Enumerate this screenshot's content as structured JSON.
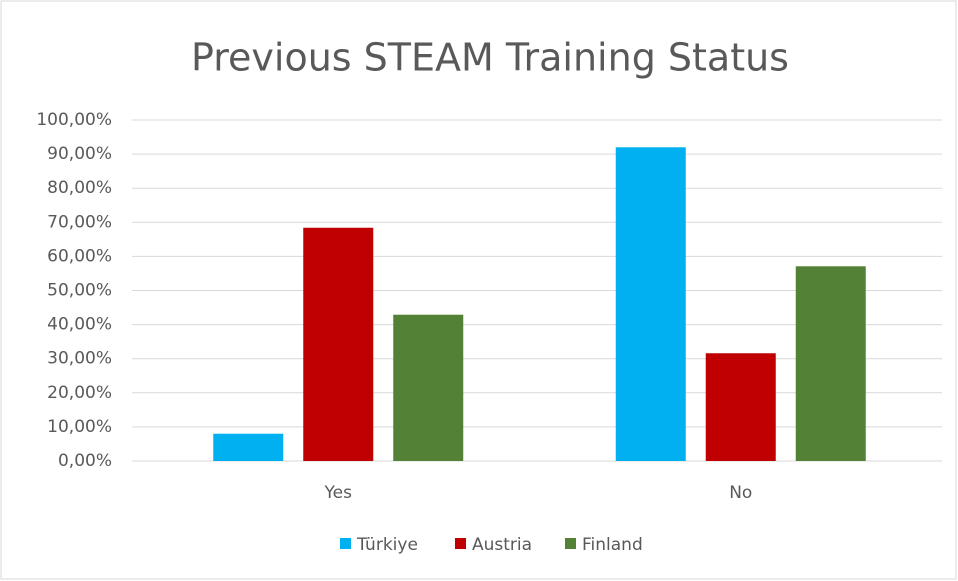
{
  "chart_data": {
    "type": "bar",
    "title": "Previous STEAM Training Status",
    "categories": [
      "Yes",
      "No"
    ],
    "series": [
      {
        "name": "Türkiye",
        "color": "#00b0f0",
        "values": [
          8,
          92
        ]
      },
      {
        "name": "Austria",
        "color": "#c00000",
        "values": [
          68.4,
          31.6
        ]
      },
      {
        "name": "Finland",
        "color": "#538135",
        "values": [
          42.9,
          57.1
        ]
      }
    ],
    "ylim": [
      0,
      100
    ],
    "yticks": [
      {
        "value": 0,
        "label": "0,00%"
      },
      {
        "value": 10,
        "label": "10,00%"
      },
      {
        "value": 20,
        "label": "20,00%"
      },
      {
        "value": 30,
        "label": "30,00%"
      },
      {
        "value": 40,
        "label": "40,00%"
      },
      {
        "value": 50,
        "label": "50,00%"
      },
      {
        "value": 60,
        "label": "60,00%"
      },
      {
        "value": 70,
        "label": "70,00%"
      },
      {
        "value": 80,
        "label": "80,00%"
      },
      {
        "value": 90,
        "label": "90,00%"
      },
      {
        "value": 100,
        "label": "100,00%"
      }
    ],
    "grid": true,
    "legend": "bottom"
  }
}
